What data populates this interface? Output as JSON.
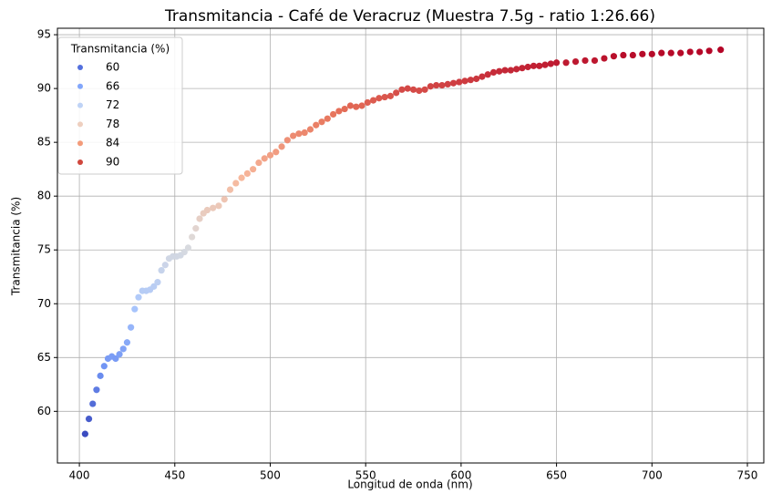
{
  "chart_data": {
    "type": "scatter",
    "title": "Transmitancia - Café de Veracruz (Muestra 7.5g - ratio 1:26.66)",
    "x_label": "Longitud de onda (nm)",
    "y_label": "Transmitancia (%)",
    "x": [
      403,
      405,
      407,
      409,
      411,
      413,
      415,
      417,
      419,
      421,
      423,
      425,
      427,
      429,
      431,
      433,
      435,
      437,
      439,
      441,
      443,
      445,
      447,
      449,
      451,
      453,
      455,
      457,
      459,
      461,
      463,
      465,
      467,
      470,
      473,
      476,
      479,
      482,
      485,
      488,
      491,
      494,
      497,
      500,
      503,
      506,
      509,
      512,
      515,
      518,
      521,
      524,
      527,
      530,
      533,
      536,
      539,
      542,
      545,
      548,
      551,
      554,
      557,
      560,
      563,
      566,
      569,
      572,
      575,
      578,
      581,
      584,
      587,
      590,
      593,
      596,
      599,
      602,
      605,
      608,
      611,
      614,
      617,
      620,
      623,
      626,
      629,
      632,
      635,
      638,
      641,
      644,
      647,
      650,
      655,
      660,
      665,
      670,
      675,
      680,
      685,
      690,
      695,
      700,
      705,
      710,
      715,
      720,
      725,
      730,
      736
    ],
    "values": [
      57.9,
      59.3,
      60.7,
      62.0,
      63.3,
      64.2,
      64.9,
      65.1,
      64.9,
      65.3,
      65.8,
      66.4,
      67.8,
      69.5,
      70.6,
      71.2,
      71.2,
      71.3,
      71.6,
      72.0,
      73.1,
      73.6,
      74.2,
      74.4,
      74.4,
      74.5,
      74.8,
      75.2,
      76.2,
      77.0,
      77.9,
      78.4,
      78.7,
      78.9,
      79.1,
      79.7,
      80.6,
      81.2,
      81.7,
      82.1,
      82.5,
      83.1,
      83.5,
      83.8,
      84.1,
      84.6,
      85.2,
      85.6,
      85.8,
      85.9,
      86.2,
      86.6,
      86.9,
      87.2,
      87.6,
      87.9,
      88.1,
      88.4,
      88.3,
      88.4,
      88.7,
      88.9,
      89.1,
      89.2,
      89.3,
      89.6,
      89.9,
      90.0,
      89.9,
      89.8,
      89.9,
      90.2,
      90.3,
      90.3,
      90.4,
      90.5,
      90.6,
      90.7,
      90.8,
      90.9,
      91.1,
      91.3,
      91.5,
      91.6,
      91.7,
      91.7,
      91.8,
      91.9,
      92.0,
      92.1,
      92.1,
      92.2,
      92.3,
      92.4,
      92.4,
      92.5,
      92.6,
      92.6,
      92.8,
      93.0,
      93.1,
      93.1,
      93.2,
      93.2,
      93.3,
      93.3,
      93.3,
      93.4,
      93.4,
      93.5,
      93.6
    ],
    "colormap": [
      "#3b4cc0",
      "#6f92f3",
      "#aac7fd",
      "#dddcdc",
      "#f7b89c",
      "#e7745b",
      "#b40426"
    ],
    "color_range": [
      57.9,
      93.6
    ],
    "legend_title": "Transmitancia (%)",
    "legend": [
      {
        "name": "60",
        "color": "#5470de"
      },
      {
        "name": "66",
        "color": "#82a6fb"
      },
      {
        "name": "72",
        "color": "#bfd3f6"
      },
      {
        "name": "78",
        "color": "#eecfbf"
      },
      {
        "name": "84",
        "color": "#f39b7a"
      },
      {
        "name": "90",
        "color": "#d0473d"
      }
    ],
    "legend_loc": "upper left",
    "xlim": [
      388.5,
      758.6
    ],
    "xticks": [
      400,
      450,
      500,
      550,
      600,
      650,
      700,
      750
    ],
    "ylim": [
      55.2,
      95.6
    ],
    "yticks": [
      60,
      65,
      70,
      75,
      80,
      85,
      90,
      95
    ],
    "grid": true
  }
}
